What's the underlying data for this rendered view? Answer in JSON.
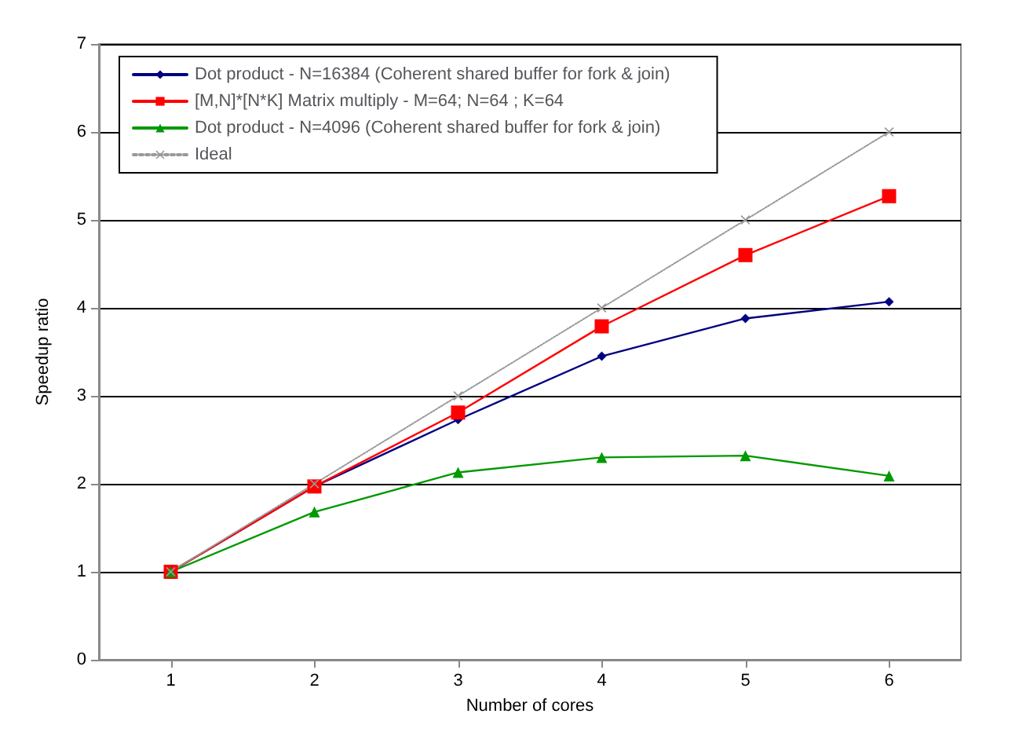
{
  "chart_data": {
    "type": "line",
    "xlabel": "Number of cores",
    "ylabel": "Speedup ratio",
    "categories": [
      "1",
      "2",
      "3",
      "4",
      "5",
      "6"
    ],
    "ylim": [
      0,
      7
    ],
    "yticks": [
      0,
      1,
      2,
      3,
      4,
      5,
      6,
      7
    ],
    "grid": "y",
    "legend": "top left",
    "series": [
      {
        "name": "Dot product - N=16384 (Coherent shared buffer for fork & join)",
        "color": "#000080",
        "marker": "diamond",
        "line_style": "solid",
        "values": [
          1,
          1.97,
          2.73,
          3.45,
          3.88,
          4.07
        ]
      },
      {
        "name": "[M,N]*[N*K] Matrix multiply - M=64; N=64 ; K=64",
        "color": "#ff0000",
        "marker": "square",
        "line_style": "solid",
        "values": [
          1,
          1.97,
          2.81,
          3.79,
          4.6,
          5.27
        ]
      },
      {
        "name": "Dot product - N=4096 (Coherent shared buffer for fork & join)",
        "color": "#009900",
        "marker": "triangle",
        "line_style": "solid",
        "values": [
          1,
          1.68,
          2.13,
          2.3,
          2.32,
          2.09
        ]
      },
      {
        "name": "Ideal",
        "color": "#999999",
        "marker": "cross",
        "line_style": "dotted",
        "values": [
          1,
          2,
          3,
          4,
          5,
          6
        ]
      }
    ]
  }
}
